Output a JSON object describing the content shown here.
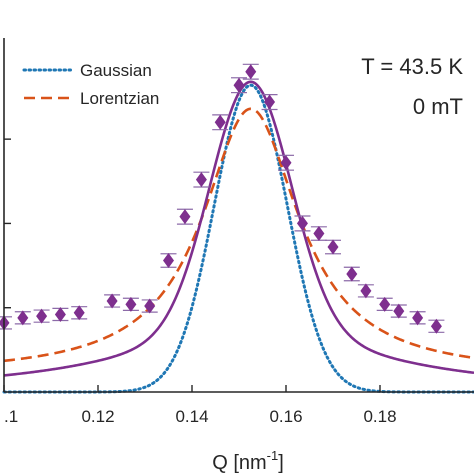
{
  "chart_data": {
    "type": "scatter",
    "xlabel": "Q [nm",
    "xlabel_sup": "-1",
    "xlabel_close": "]",
    "xlim": [
      0.1,
      0.2
    ],
    "ylim": [
      0.0,
      1.05
    ],
    "x_ticks": [
      0.1,
      0.12,
      0.14,
      0.16,
      0.18
    ],
    "x_tick_labels": [
      ".1",
      "0.12",
      "0.14",
      "0.16",
      "0.18"
    ],
    "y_ticks": [
      0.25,
      0.5,
      0.75
    ],
    "legend_position": "top-left",
    "annotations": [
      "T = 43.5 K",
      "0 mT"
    ],
    "colors": {
      "gaussian": "#1f77b4",
      "lorentzian": "#d95319",
      "fit": "#7e2f8e",
      "data": "#7e2f8e",
      "errorbar": "#8c6aa8"
    },
    "series": [
      {
        "name": "Gaussian",
        "style": "dotted",
        "model": "gaussian",
        "center": 0.1525,
        "amplitude": 0.91,
        "sigma": 0.0078
      },
      {
        "name": "Lorentzian",
        "style": "dashed",
        "model": "lorentzian",
        "center": 0.1525,
        "amplitude": 0.79,
        "gamma": 0.0125,
        "offset": 0.05
      },
      {
        "style": "solid",
        "model": "voigt_like",
        "center": 0.1525,
        "amplitude": 0.72,
        "sigma": 0.0085,
        "background_amp": 0.2,
        "background_gamma": 0.03
      },
      {
        "style": "markers",
        "x": [
          0.1,
          0.104,
          0.108,
          0.112,
          0.116,
          0.123,
          0.127,
          0.131,
          0.135,
          0.1385,
          0.142,
          0.146,
          0.15,
          0.1525,
          0.1565,
          0.16,
          0.1635,
          0.167,
          0.17,
          0.174,
          0.177,
          0.181,
          0.184,
          0.188,
          0.192
        ],
        "y": [
          0.205,
          0.22,
          0.225,
          0.23,
          0.235,
          0.27,
          0.26,
          0.255,
          0.39,
          0.52,
          0.63,
          0.8,
          0.91,
          0.95,
          0.86,
          0.68,
          0.5,
          0.47,
          0.43,
          0.35,
          0.3,
          0.26,
          0.24,
          0.22,
          0.195
        ],
        "yerr": [
          0.018,
          0.018,
          0.018,
          0.018,
          0.018,
          0.018,
          0.018,
          0.018,
          0.02,
          0.022,
          0.022,
          0.022,
          0.022,
          0.022,
          0.022,
          0.022,
          0.022,
          0.02,
          0.02,
          0.02,
          0.018,
          0.018,
          0.018,
          0.018,
          0.018
        ]
      }
    ]
  }
}
